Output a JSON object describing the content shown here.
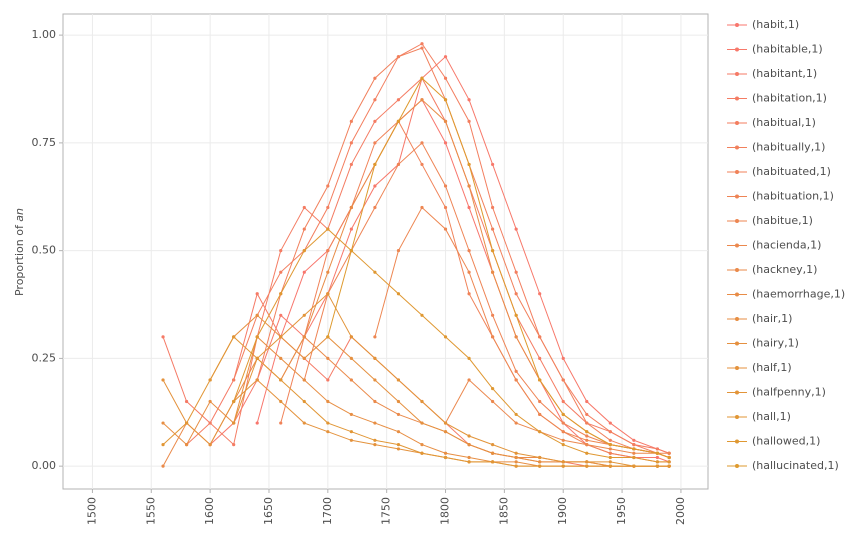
{
  "chart_data": {
    "type": "line",
    "ylabel": {
      "text": "Proportion of",
      "em": "an"
    },
    "xlim": [
      1475,
      2023
    ],
    "ylim": [
      -0.053,
      1.049
    ],
    "xticks": [
      1500,
      1550,
      1600,
      1650,
      1700,
      1750,
      1800,
      1850,
      1900,
      1950,
      2000
    ],
    "yticks": [
      {
        "value": 0,
        "label": "0.00"
      },
      0.25,
      {
        "value": 0.5,
        "label": "0.50"
      },
      0.75,
      {
        "value": 1,
        "label": "1.00"
      }
    ],
    "grid": true,
    "legend": "right",
    "x": [
      1560,
      1580,
      1600,
      1620,
      1640,
      1660,
      1680,
      1700,
      1720,
      1740,
      1760,
      1780,
      1800,
      1820,
      1840,
      1860,
      1880,
      1900,
      1920,
      1940,
      1960,
      1980,
      1990
    ],
    "series": [
      {
        "name": "(habit,1)",
        "color": "#F8766D",
        "values": [
          null,
          null,
          null,
          null,
          0.1,
          0.3,
          0.45,
          0.5,
          0.6,
          0.7,
          0.8,
          0.85,
          0.75,
          0.6,
          0.45,
          0.3,
          0.2,
          0.1,
          0.05,
          0.03,
          0.02,
          0.02,
          0.01
        ]
      },
      {
        "name": "(habitable,1)",
        "color": "#F7786A",
        "values": [
          null,
          null,
          0.05,
          0.1,
          0.2,
          0.35,
          0.3,
          0.4,
          0.55,
          0.65,
          0.7,
          0.9,
          0.95,
          0.85,
          0.7,
          0.55,
          0.4,
          0.25,
          0.15,
          0.1,
          0.06,
          0.04,
          0.03
        ]
      },
      {
        "name": "(habitant,1)",
        "color": "#F57A66",
        "values": [
          0.3,
          0.15,
          0.1,
          0.2,
          0.4,
          0.3,
          0.25,
          0.2,
          0.3,
          0.25,
          0.2,
          0.15,
          0.1,
          0.05,
          0.03,
          0.02,
          0.01,
          0.01,
          0,
          0,
          0,
          0,
          0
        ]
      },
      {
        "name": "(habitation,1)",
        "color": "#F47C63",
        "values": [
          null,
          0.05,
          0.1,
          0.05,
          0.3,
          0.5,
          0.6,
          0.55,
          0.7,
          0.8,
          0.85,
          0.9,
          0.8,
          0.65,
          0.5,
          0.35,
          0.25,
          0.15,
          0.1,
          0.08,
          0.05,
          0.04,
          0.03
        ]
      },
      {
        "name": "(habitual,1)",
        "color": "#F37E5F",
        "values": [
          null,
          null,
          null,
          0.2,
          0.35,
          0.45,
          0.5,
          0.6,
          0.75,
          0.85,
          0.95,
          0.98,
          0.9,
          0.8,
          0.6,
          0.45,
          0.3,
          0.2,
          0.12,
          0.08,
          0.05,
          0.03,
          0.02
        ]
      },
      {
        "name": "(habitually,1)",
        "color": "#F1805C",
        "values": [
          null,
          null,
          null,
          null,
          0.2,
          0.4,
          0.55,
          0.65,
          0.8,
          0.9,
          0.95,
          0.97,
          0.85,
          0.7,
          0.55,
          0.4,
          0.3,
          0.2,
          0.1,
          0.06,
          0.04,
          0.03,
          0.02
        ]
      },
      {
        "name": "(habituated,1)",
        "color": "#F08258",
        "values": [
          null,
          null,
          null,
          null,
          null,
          0.1,
          0.3,
          0.5,
          0.6,
          0.75,
          0.8,
          0.7,
          0.6,
          0.4,
          0.3,
          0.2,
          0.12,
          0.08,
          0.05,
          0.03,
          0.02,
          0.01,
          0.01
        ]
      },
      {
        "name": "(habituation,1)",
        "color": "#EE8455",
        "values": [
          null,
          null,
          null,
          null,
          null,
          null,
          0.2,
          0.4,
          0.5,
          0.6,
          0.7,
          0.75,
          0.65,
          0.5,
          0.35,
          0.22,
          0.15,
          0.1,
          0.07,
          0.05,
          0.04,
          0.03,
          0.02
        ]
      },
      {
        "name": "(habitue,1)",
        "color": "#ED8651",
        "values": [
          null,
          null,
          null,
          null,
          null,
          null,
          null,
          null,
          null,
          0.3,
          0.5,
          0.6,
          0.55,
          0.45,
          0.3,
          0.2,
          0.12,
          0.08,
          0.06,
          0.05,
          0.04,
          0.03,
          0.03
        ]
      },
      {
        "name": "(hacienda,1)",
        "color": "#EB884E",
        "values": [
          null,
          null,
          null,
          null,
          null,
          null,
          null,
          null,
          null,
          null,
          null,
          null,
          0.1,
          0.2,
          0.15,
          0.1,
          0.08,
          0.06,
          0.05,
          0.04,
          0.03,
          0.03,
          0.02
        ]
      },
      {
        "name": "(hackney,1)",
        "color": "#EA8A4A",
        "values": [
          0,
          0.1,
          0.05,
          0.15,
          0.25,
          0.2,
          0.3,
          0.25,
          0.2,
          0.15,
          0.12,
          0.1,
          0.08,
          0.05,
          0.03,
          0.02,
          0.02,
          0.01,
          0.01,
          0,
          0,
          0,
          0
        ]
      },
      {
        "name": "(haemorrhage,1)",
        "color": "#E88C47",
        "values": [
          null,
          null,
          null,
          null,
          null,
          0.2,
          0.3,
          0.45,
          0.6,
          0.7,
          0.8,
          0.85,
          0.8,
          0.65,
          0.45,
          0.3,
          0.2,
          0.12,
          0.08,
          0.05,
          0.04,
          0.03,
          0.02
        ]
      },
      {
        "name": "(hair,1)",
        "color": "#E78E43",
        "values": [
          0.1,
          0.05,
          0.15,
          0.1,
          0.3,
          0.25,
          0.2,
          0.15,
          0.12,
          0.1,
          0.08,
          0.05,
          0.03,
          0.02,
          0.01,
          0.01,
          0,
          0,
          0,
          0,
          0,
          0,
          0
        ]
      },
      {
        "name": "(hairy,1)",
        "color": "#E59040",
        "values": [
          null,
          null,
          0.2,
          0.3,
          0.35,
          0.3,
          0.25,
          0.3,
          0.25,
          0.2,
          0.15,
          0.1,
          0.08,
          0.05,
          0.03,
          0.02,
          0.01,
          0.01,
          0.01,
          0,
          0,
          0,
          0
        ]
      },
      {
        "name": "(half,1)",
        "color": "#E4923C",
        "values": [
          0.2,
          0.1,
          0.05,
          0.15,
          0.2,
          0.15,
          0.1,
          0.08,
          0.06,
          0.05,
          0.04,
          0.03,
          0.02,
          0.01,
          0.01,
          0,
          0,
          0,
          0,
          0,
          0,
          0,
          0
        ]
      },
      {
        "name": "(halfpenny,1)",
        "color": "#E29439",
        "values": [
          null,
          null,
          null,
          0.1,
          0.25,
          0.3,
          0.35,
          0.4,
          0.3,
          0.25,
          0.2,
          0.15,
          0.1,
          0.07,
          0.05,
          0.03,
          0.02,
          0.01,
          0.01,
          0.01,
          0,
          0,
          0
        ]
      },
      {
        "name": "(hall,1)",
        "color": "#E19635",
        "values": [
          0.05,
          0.1,
          0.2,
          0.3,
          0.25,
          0.2,
          0.15,
          0.1,
          0.08,
          0.06,
          0.05,
          0.03,
          0.02,
          0.01,
          0.01,
          0,
          0,
          0,
          0,
          0,
          0,
          0,
          0
        ]
      },
      {
        "name": "(hallowed,1)",
        "color": "#DF9832",
        "values": [
          null,
          null,
          null,
          0.15,
          0.3,
          0.4,
          0.5,
          0.55,
          0.5,
          0.45,
          0.4,
          0.35,
          0.3,
          0.25,
          0.18,
          0.12,
          0.08,
          0.05,
          0.03,
          0.02,
          0.02,
          0.01,
          0.01
        ]
      },
      {
        "name": "(hallucinated,1)",
        "color": "#DE9A2E",
        "values": [
          null,
          null,
          null,
          null,
          null,
          null,
          null,
          0.3,
          0.5,
          0.7,
          0.8,
          0.9,
          0.85,
          0.7,
          0.5,
          0.35,
          0.2,
          0.12,
          0.08,
          0.05,
          0.04,
          0.03,
          0.02
        ]
      }
    ]
  }
}
